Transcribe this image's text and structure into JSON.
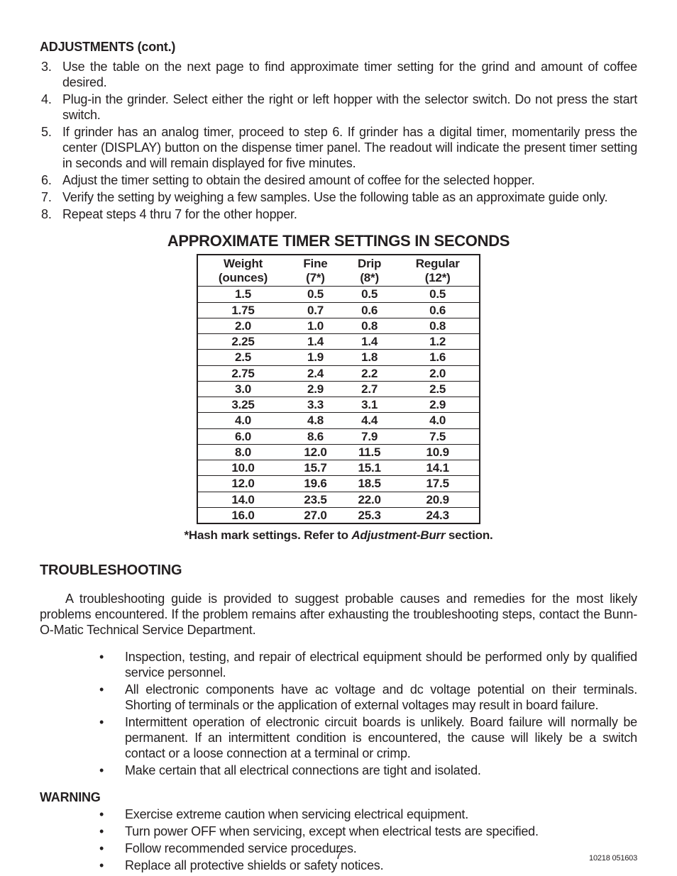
{
  "adjustments": {
    "heading": "ADJUSTMENTS (cont.)",
    "steps": [
      "Use the table on the next page to find approximate timer setting for the grind and amount of coffee desired.",
      "Plug-in the grinder. Select either the right or left hopper with the selector switch. Do not press the start switch.",
      "If grinder has an analog timer, proceed to step 6. If grinder has a digital timer, momentarily press the center (DISPLAY) button on the dispense timer panel. The readout will indicate the present timer setting in seconds and will remain displayed for five minutes.",
      "Adjust the timer setting to obtain the desired amount of coffee for the selected hopper.",
      "Verify the setting by weighing a few samples. Use the following table as an approximate guide only.",
      "Repeat steps 4 thru 7 for the other hopper."
    ]
  },
  "timer_table": {
    "title": "APPROXIMATE TIMER SETTINGS IN SECONDS",
    "headers": {
      "c1a": "Weight",
      "c1b": "(ounces)",
      "c2a": "Fine",
      "c2b": "(7*)",
      "c3a": "Drip",
      "c3b": "(8*)",
      "c4a": "Regular",
      "c4b": "(12*)"
    },
    "rows": [
      [
        "1.5",
        "0.5",
        "0.5",
        "0.5"
      ],
      [
        "1.75",
        "0.7",
        "0.6",
        "0.6"
      ],
      [
        "2.0",
        "1.0",
        "0.8",
        "0.8"
      ],
      [
        "2.25",
        "1.4",
        "1.4",
        "1.2"
      ],
      [
        "2.5",
        "1.9",
        "1.8",
        "1.6"
      ],
      [
        "2.75",
        "2.4",
        "2.2",
        "2.0"
      ],
      [
        "3.0",
        "2.9",
        "2.7",
        "2.5"
      ],
      [
        "3.25",
        "3.3",
        "3.1",
        "2.9"
      ],
      [
        "4.0",
        "4.8",
        "4.4",
        "4.0"
      ],
      [
        "6.0",
        "8.6",
        "7.9",
        "7.5"
      ],
      [
        "8.0",
        "12.0",
        "11.5",
        "10.9"
      ],
      [
        "10.0",
        "15.7",
        "15.1",
        "14.1"
      ],
      [
        "12.0",
        "19.6",
        "18.5",
        "17.5"
      ],
      [
        "14.0",
        "23.5",
        "22.0",
        "20.9"
      ],
      [
        "16.0",
        "27.0",
        "25.3",
        "24.3"
      ]
    ],
    "footnote_a": "*Hash mark settings.  Refer to ",
    "footnote_i": "Adjustment-Burr",
    "footnote_b": " section."
  },
  "troubleshooting": {
    "heading": "TROUBLESHOOTING",
    "intro": "A troubleshooting guide is provided to suggest probable causes and remedies for the most likely problems encountered. If the problem remains after exhausting the troubleshooting steps, contact the Bunn-O-Matic Technical Service Department.",
    "bullets": [
      "Inspection, testing, and repair of electrical equipment should be performed only by qualified service personnel.",
      "All electronic components have ac voltage and dc voltage potential on their terminals.  Shorting of terminals or the application of external voltages may result in board failure.",
      "Intermittent operation of electronic circuit boards is unlikely.  Board failure will normally be permanent. If an intermittent condition is encountered, the cause will likely be a switch contact or a loose connection at a terminal or crimp.",
      "Make certain that all electrical connections are tight and isolated."
    ]
  },
  "warning": {
    "heading": "WARNING",
    "bullets": [
      "Exercise extreme caution when servicing electrical equipment.",
      "Turn power OFF when servicing, except when electrical tests are specified.",
      "Follow recommended service procedures.",
      "Replace all protective shields or safety notices."
    ]
  },
  "footer": {
    "page_number": "7",
    "doc_id": "10218 051603"
  }
}
